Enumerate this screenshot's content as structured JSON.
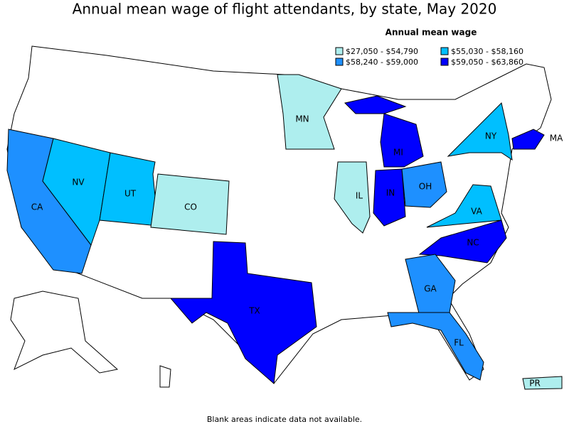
{
  "title": "Annual mean wage of flight attendants, by state, May 2020",
  "legend": {
    "title": "Annual mean wage",
    "items": [
      {
        "label": "$27,050 - $54,790",
        "color": "#aeeeee"
      },
      {
        "label": "$55,030 - $58,160",
        "color": "#00bfff"
      },
      {
        "label": "$58,240 - $59,000",
        "color": "#1e90ff"
      },
      {
        "label": "$59,050 - $63,860",
        "color": "#0000ff"
      }
    ]
  },
  "states": [
    {
      "label": "CA",
      "color": "#1e90ff"
    },
    {
      "label": "NV",
      "color": "#00bfff"
    },
    {
      "label": "UT",
      "color": "#00bfff"
    },
    {
      "label": "CO",
      "color": "#aeeeee"
    },
    {
      "label": "MN",
      "color": "#aeeeee"
    },
    {
      "label": "IL",
      "color": "#aeeeee"
    },
    {
      "label": "IN",
      "color": "#0000ff"
    },
    {
      "label": "MI",
      "color": "#0000ff"
    },
    {
      "label": "OH",
      "color": "#1e90ff"
    },
    {
      "label": "NY",
      "color": "#00bfff"
    },
    {
      "label": "MA",
      "color": "#0000ff"
    },
    {
      "label": "VA",
      "color": "#00bfff"
    },
    {
      "label": "NC",
      "color": "#0000ff"
    },
    {
      "label": "TX",
      "color": "#0000ff"
    },
    {
      "label": "GA",
      "color": "#1e90ff"
    },
    {
      "label": "FL",
      "color": "#1e90ff"
    },
    {
      "label": "PR",
      "color": "#aeeeee"
    }
  ],
  "footnote": "Blank areas indicate data not available."
}
